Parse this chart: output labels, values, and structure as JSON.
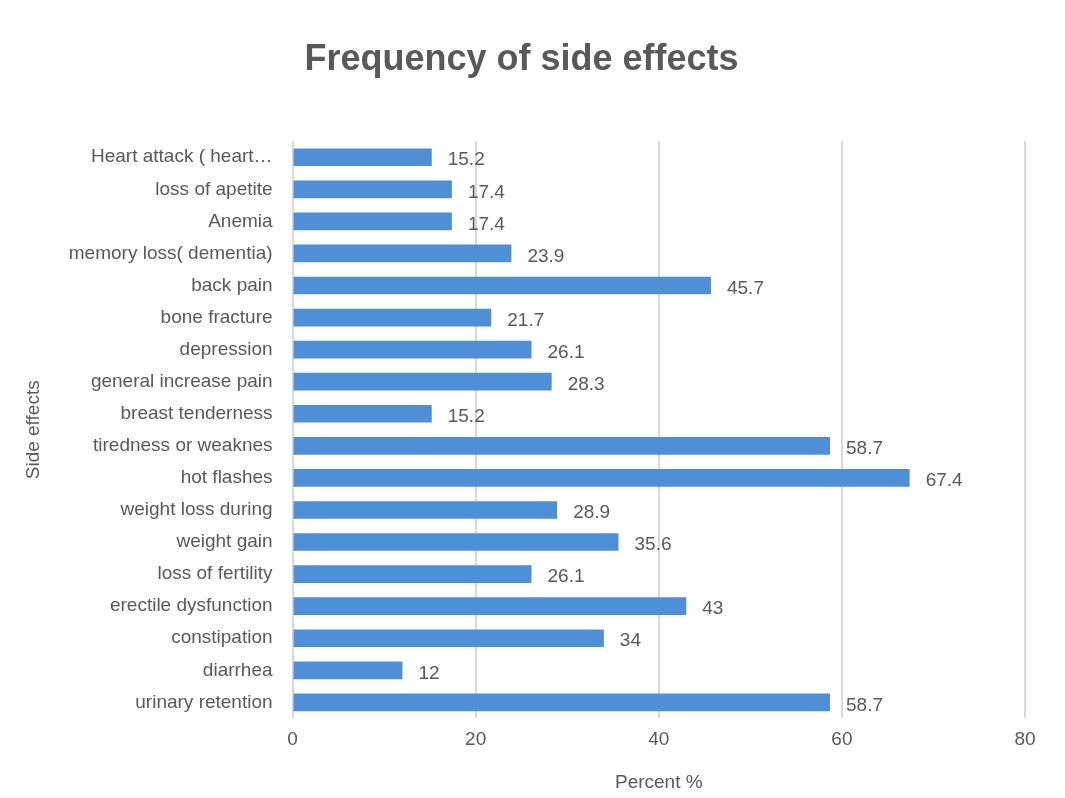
{
  "chart_data": {
    "type": "bar",
    "orientation": "horizontal",
    "title": "Frequency of side effects",
    "xlabel": "Percent %",
    "ylabel": "Side effects",
    "categories": [
      "Heart attack ( heart…",
      "loss of apetite",
      "Anemia",
      "memory loss( dementia)",
      "back pain",
      "bone fracture",
      "depression",
      "general increase pain",
      "breast tenderness",
      "tiredness or weaknes",
      "hot flashes",
      "weight loss during",
      "weight gain",
      "loss of fertility",
      "erectile dysfunction",
      "constipation",
      "diarrhea",
      "urinary retention"
    ],
    "values": [
      15.2,
      17.4,
      17.4,
      23.9,
      45.7,
      21.7,
      26.1,
      28.3,
      15.2,
      58.7,
      67.4,
      28.9,
      35.6,
      26.1,
      43,
      34,
      12,
      58.7
    ],
    "color": "#4f8fd6",
    "xlim": [
      0,
      80
    ],
    "xticks": [
      0,
      20,
      40,
      60,
      80
    ],
    "grid": "x",
    "legend": false,
    "data_labels": true
  }
}
